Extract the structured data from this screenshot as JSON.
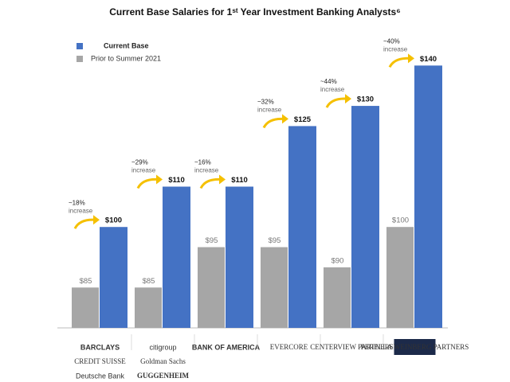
{
  "chart_data": {
    "type": "bar",
    "title": "Current Base Salaries for 1ˢᵗ Year Investment Banking Analysts⁶",
    "categories": [
      [
        "BARCLAYS",
        "CREDIT SUISSE",
        "Deutsche Bank"
      ],
      [
        "citigroup",
        "Goldman Sachs",
        "GUGGENHEIM"
      ],
      [
        "BANK OF AMERICA"
      ],
      [
        "EVERCORE"
      ],
      [
        "CENTERVIEW PARTNERS"
      ],
      [
        "PERELLA WEINBERG PARTNERS"
      ]
    ],
    "series": [
      {
        "name": "Prior to Summer 2021",
        "color": "#a6a6a6",
        "values": [
          85,
          85,
          95,
          95,
          90,
          100
        ],
        "value_labels": [
          "$85",
          "$85",
          "$95",
          "$95",
          "$90",
          "$100"
        ]
      },
      {
        "name": "Current Base",
        "color": "#4472c4",
        "values": [
          100,
          110,
          110,
          125,
          130,
          140
        ],
        "value_labels": [
          "$100",
          "$110",
          "$110",
          "$125",
          "$130",
          "$140"
        ]
      }
    ],
    "change_labels": [
      "~18%",
      "~29%",
      "~16%",
      "~32%",
      "~44%",
      "~40%"
    ],
    "change_note": "increase",
    "ylim": [
      75,
      145
    ]
  }
}
